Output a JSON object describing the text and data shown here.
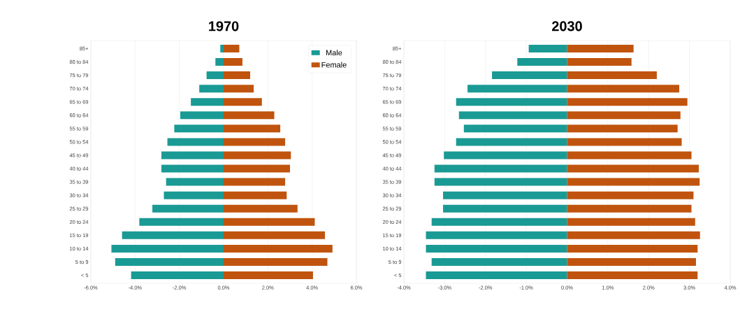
{
  "chart_data": [
    {
      "type": "bar",
      "orientation": "horizontal",
      "stacked": true,
      "title": "1970",
      "categories": [
        "85+",
        "80 to 84",
        "75 to 79",
        "70 to 74",
        "65 to 69",
        "60 to 64",
        "55 to 59",
        "50 to 54",
        "45 to 49",
        "40 to 44",
        "35 to 39",
        "30 to 34",
        "25 to 29",
        "20 to 24",
        "15 to 19",
        "10 to 14",
        "5 to 9",
        "< 5"
      ],
      "series": [
        {
          "name": "Male",
          "color": "#1a9a94",
          "values": [
            -0.15,
            -0.37,
            -0.77,
            -1.1,
            -1.48,
            -1.96,
            -2.23,
            -2.54,
            -2.81,
            -2.81,
            -2.6,
            -2.7,
            -3.22,
            -3.81,
            -4.59,
            -5.07,
            -4.9,
            -4.18
          ]
        },
        {
          "name": "Female",
          "color": "#c0540e",
          "values": [
            0.71,
            0.85,
            1.2,
            1.36,
            1.73,
            2.29,
            2.56,
            2.78,
            3.04,
            3.0,
            2.78,
            2.85,
            3.34,
            4.12,
            4.58,
            4.92,
            4.69,
            4.04
          ]
        }
      ],
      "xlim": [
        -6,
        6
      ],
      "xticks": [
        {
          "value": -6,
          "label": "-6.0%"
        },
        {
          "value": -4,
          "label": "-4.0%"
        },
        {
          "value": -2,
          "label": "-2.0%"
        },
        {
          "value": 0,
          "label": "0.0%"
        },
        {
          "value": 2,
          "label": "2.0%"
        },
        {
          "value": 4,
          "label": "4.0%"
        },
        {
          "value": 6,
          "label": "6.0%"
        }
      ],
      "grid": "x",
      "legend": "top right"
    },
    {
      "type": "bar",
      "orientation": "horizontal",
      "stacked": true,
      "title": "2030",
      "categories": [
        "85+",
        "80 to 84",
        "75 to 79",
        "70 to 74",
        "65 to 69",
        "60 to 64",
        "55 to 59",
        "50 to 54",
        "45 to 49",
        "40 to 44",
        "35 to 39",
        "30 to 34",
        "25 to 29",
        "20 to 24",
        "15 to 19",
        "10 to 14",
        "5 to 9",
        "< 5"
      ],
      "series": [
        {
          "color": "#1a9a94",
          "values": [
            -0.94,
            -1.22,
            -1.84,
            -2.44,
            -2.72,
            -2.65,
            -2.53,
            -2.72,
            -3.02,
            -3.25,
            -3.25,
            -3.04,
            -3.04,
            -3.32,
            -3.46,
            -3.46,
            -3.32,
            -3.46
          ]
        },
        {
          "color": "#c0540e",
          "values": [
            1.63,
            1.58,
            2.2,
            2.75,
            2.95,
            2.78,
            2.71,
            2.81,
            3.05,
            3.23,
            3.25,
            3.1,
            3.05,
            3.14,
            3.26,
            3.2,
            3.16,
            3.2
          ]
        }
      ],
      "xlim": [
        -4,
        4
      ],
      "xticks": [
        {
          "value": -4,
          "label": "-4.0%"
        },
        {
          "value": -3,
          "label": "-3.0%"
        },
        {
          "value": -2,
          "label": "-2.0%"
        },
        {
          "value": -1,
          "label": "-1.0%"
        },
        {
          "value": 0,
          "label": "0.0%"
        },
        {
          "value": 1,
          "label": "1.0%"
        },
        {
          "value": 2,
          "label": "2.0%"
        },
        {
          "value": 3,
          "label": "3.0%"
        },
        {
          "value": 4,
          "label": "4.0%"
        }
      ],
      "grid": "x"
    }
  ]
}
